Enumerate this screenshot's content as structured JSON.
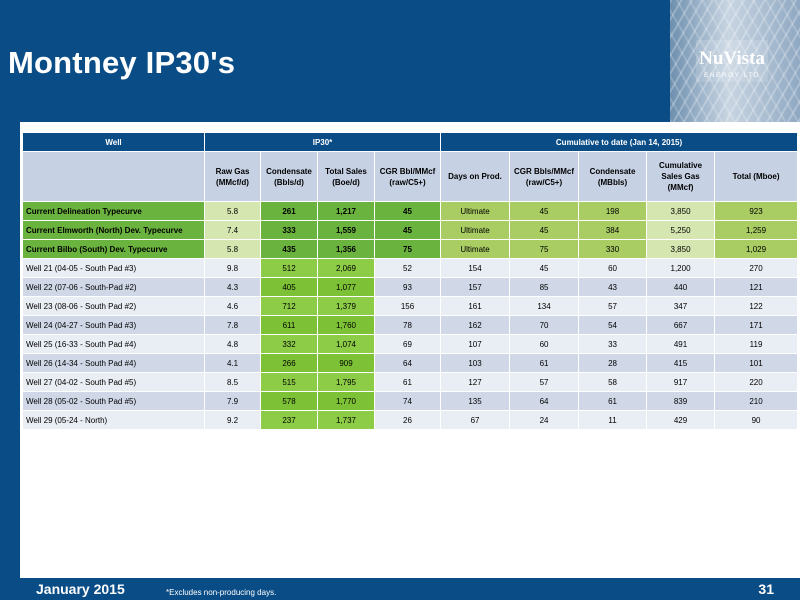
{
  "slide": {
    "title": "Montney IP30's",
    "footer_date": "January 2015",
    "footnote": "*Excludes non-producing days.",
    "page_number": "31"
  },
  "logo": {
    "name": "NuVista",
    "tagline": "ENERGY LTD"
  },
  "colors": {
    "brand_blue": "#0a4c86",
    "typecurve_green": "#6bb33f",
    "light_green": "#8ccc46",
    "header_lavender": "#c6d1e4"
  },
  "table": {
    "groups": {
      "well": "Well",
      "ip30": "IP30*",
      "cumulative": "Cumulative to date (Jan 14, 2015)"
    },
    "columns": {
      "raw_gas": "Raw Gas (MMcf/d)",
      "condensate": "Condensate (Bbls/d)",
      "total_sales": "Total Sales (Boe/d)",
      "cgr_ip": "CGR Bbl/MMcf (raw/C5+)",
      "days": "Days on Prod.",
      "cgr_cum": "CGR Bbls/MMcf (raw/C5+)",
      "cond_cum": "Condensate (MBbls)",
      "cum_gas": "Cumulative Sales Gas (MMcf)",
      "total": "Total (Mboe)"
    },
    "typecurves": [
      {
        "name": "Current Delineation Typecurve",
        "gas": "5.8",
        "cond": "261",
        "boe": "1,217",
        "cgr": "45",
        "days": "Ultimate",
        "cgr2": "45",
        "cond_cum": "198",
        "gas_cum": "3,850",
        "total": "923"
      },
      {
        "name": "Current Elmworth (North) Dev. Typecurve",
        "gas": "7.4",
        "cond": "333",
        "boe": "1,559",
        "cgr": "45",
        "days": "Ultimate",
        "cgr2": "45",
        "cond_cum": "384",
        "gas_cum": "5,250",
        "total": "1,259"
      },
      {
        "name": "Current Bilbo (South) Dev. Typecurve",
        "gas": "5.8",
        "cond": "435",
        "boe": "1,356",
        "cgr": "75",
        "days": "Ultimate",
        "cgr2": "75",
        "cond_cum": "330",
        "gas_cum": "3,850",
        "total": "1,029"
      }
    ],
    "wells": [
      {
        "name": "Well 21 (04-05 - South Pad #3)",
        "gas": "9.8",
        "cond": "512",
        "boe": "2,069",
        "cgr": "52",
        "days": "154",
        "cgr2": "45",
        "cond_cum": "60",
        "gas_cum": "1,200",
        "total": "270"
      },
      {
        "name": "Well 22 (07-06 - South-Pad #2)",
        "gas": "4.3",
        "cond": "405",
        "boe": "1,077",
        "cgr": "93",
        "days": "157",
        "cgr2": "85",
        "cond_cum": "43",
        "gas_cum": "440",
        "total": "121"
      },
      {
        "name": "Well 23 (08-06 - South Pad #2)",
        "gas": "4.6",
        "cond": "712",
        "boe": "1,379",
        "cgr": "156",
        "days": "161",
        "cgr2": "134",
        "cond_cum": "57",
        "gas_cum": "347",
        "total": "122"
      },
      {
        "name": "Well 24 (04-27 - South Pad #3)",
        "gas": "7.8",
        "cond": "611",
        "boe": "1,760",
        "cgr": "78",
        "days": "162",
        "cgr2": "70",
        "cond_cum": "54",
        "gas_cum": "667",
        "total": "171"
      },
      {
        "name": "Well 25 (16-33 - South Pad #4)",
        "gas": "4.8",
        "cond": "332",
        "boe": "1,074",
        "cgr": "69",
        "days": "107",
        "cgr2": "60",
        "cond_cum": "33",
        "gas_cum": "491",
        "total": "119"
      },
      {
        "name": "Well 26 (14-34 - South Pad #4)",
        "gas": "4.1",
        "cond": "266",
        "boe": "909",
        "cgr": "64",
        "days": "103",
        "cgr2": "61",
        "cond_cum": "28",
        "gas_cum": "415",
        "total": "101"
      },
      {
        "name": "Well 27 (04-02 - South Pad #5)",
        "gas": "8.5",
        "cond": "515",
        "boe": "1,795",
        "cgr": "61",
        "days": "127",
        "cgr2": "57",
        "cond_cum": "58",
        "gas_cum": "917",
        "total": "220"
      },
      {
        "name": "Well 28 (05-02 - South Pad #5)",
        "gas": "7.9",
        "cond": "578",
        "boe": "1,770",
        "cgr": "74",
        "days": "135",
        "cgr2": "64",
        "cond_cum": "61",
        "gas_cum": "839",
        "total": "210"
      },
      {
        "name": "Well 29 (05-24 - North)",
        "gas": "9.2",
        "cond": "237",
        "boe": "1,737",
        "cgr": "26",
        "days": "67",
        "cgr2": "24",
        "cond_cum": "11",
        "gas_cum": "429",
        "total": "90"
      }
    ]
  }
}
